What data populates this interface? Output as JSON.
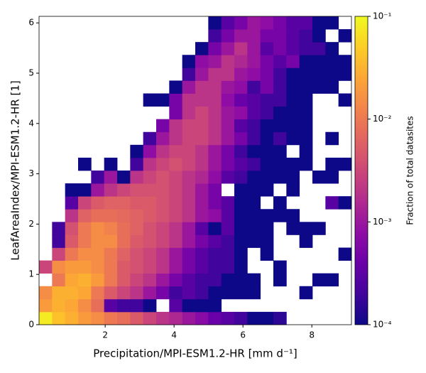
{
  "chart_data": {
    "type": "heatmap",
    "xlabel": "Precipitation/MPI-ESM1.2-HR [mm d⁻¹]",
    "ylabel": "LeafAreaIndex/MPI-ESM1.2-HR [1]",
    "colorbar_label": "Fraction of total datasites",
    "colormap": "plasma",
    "color_scale": "log",
    "xlim": [
      0.08,
      9.15
    ],
    "ylim": [
      0,
      6.13
    ],
    "xticks": [
      2,
      4,
      6,
      8
    ],
    "yticks": [
      0,
      1,
      2,
      3,
      4,
      5,
      6
    ],
    "clim": [
      0.0001,
      0.1
    ],
    "cticks": [
      {
        "value": 0.0001,
        "label": "10⁻⁴"
      },
      {
        "value": 0.001,
        "label": "10⁻³"
      },
      {
        "value": 0.01,
        "label": "10⁻²"
      },
      {
        "value": 0.1,
        "label": "10⁻¹"
      }
    ],
    "z": [
      [
        0.08,
        0.04,
        0.03,
        0.02,
        0.015,
        0.01,
        0.008,
        0.005,
        0.003,
        0.002,
        0.0015,
        0.001,
        0.0007,
        0.0004,
        0.0003,
        0.0002,
        0.0001,
        0.0001,
        0.00015,
        null,
        null,
        null,
        null,
        null
      ],
      [
        0.02,
        0.03,
        0.025,
        0.015,
        0.008,
        0.0003,
        0.0002,
        0.0002,
        0.0001,
        null,
        0.0003,
        0.0001,
        0.0001,
        0.0001,
        null,
        null,
        null,
        null,
        null,
        null,
        null,
        null,
        null,
        null
      ],
      [
        0.015,
        0.03,
        0.03,
        0.025,
        0.01,
        0.005,
        0.003,
        0.002,
        0.001,
        0.0005,
        0.0002,
        0.0003,
        0.0002,
        0.0001,
        0.0001,
        0.0001,
        0.0001,
        null,
        null,
        null,
        0.0001,
        null,
        null,
        null
      ],
      [
        null,
        0.01,
        0.025,
        0.03,
        0.02,
        0.01,
        0.005,
        0.003,
        0.002,
        0.001,
        0.0005,
        0.0003,
        0.0002,
        0.0002,
        0.0001,
        0.0001,
        0.0001,
        null,
        0.0001,
        null,
        null,
        0.0001,
        0.0001,
        null
      ],
      [
        0.003,
        0.015,
        0.02,
        0.02,
        0.015,
        0.01,
        0.005,
        0.004,
        0.003,
        0.002,
        0.001,
        0.0005,
        0.0003,
        0.0002,
        0.0002,
        0.0001,
        null,
        null,
        0.0001,
        null,
        null,
        null,
        null,
        null
      ],
      [
        null,
        0.003,
        0.01,
        0.015,
        0.015,
        0.01,
        0.006,
        0.004,
        0.003,
        0.002,
        0.001,
        0.0005,
        0.0003,
        0.0002,
        0.0002,
        0.0001,
        null,
        0.0001,
        null,
        null,
        null,
        null,
        null,
        0.0001
      ],
      [
        null,
        0.0002,
        0.005,
        0.01,
        0.015,
        0.015,
        0.008,
        0.005,
        0.004,
        0.003,
        0.002,
        0.001,
        0.0005,
        0.0003,
        0.0002,
        0.0001,
        0.0001,
        0.0001,
        null,
        null,
        0.0001,
        null,
        null,
        null
      ],
      [
        null,
        0.0002,
        0.004,
        0.01,
        0.015,
        0.012,
        0.008,
        0.006,
        0.004,
        0.003,
        0.002,
        0.001,
        0.0003,
        0.0001,
        0.0003,
        0.0001,
        0.0001,
        0.0001,
        null,
        0.0001,
        0.0001,
        0.0001,
        null,
        null
      ],
      [
        null,
        null,
        0.002,
        0.006,
        0.008,
        0.008,
        0.007,
        0.006,
        0.005,
        0.004,
        0.003,
        0.002,
        0.001,
        0.0008,
        0.0003,
        0.0001,
        0.0001,
        0.0001,
        0.0001,
        0.0001,
        null,
        null,
        null,
        null
      ],
      [
        null,
        null,
        0.0003,
        0.003,
        0.005,
        0.006,
        0.006,
        0.005,
        0.005,
        0.004,
        0.003,
        0.002,
        0.001,
        0.0005,
        0.0003,
        0.0001,
        0.0001,
        null,
        0.0001,
        null,
        null,
        null,
        0.0003,
        0.0001
      ],
      [
        null,
        null,
        0.0001,
        0.0001,
        0.001,
        0.002,
        0.003,
        0.004,
        0.004,
        0.004,
        0.003,
        0.002,
        0.001,
        0.0005,
        null,
        0.0001,
        0.0001,
        0.0001,
        null,
        0.0001,
        null,
        null,
        null,
        null
      ],
      [
        null,
        null,
        null,
        null,
        0.0002,
        0.001,
        0.0001,
        0.002,
        0.003,
        0.004,
        0.003,
        0.002,
        0.0015,
        0.0008,
        0.0003,
        0.0002,
        0.0001,
        0.0001,
        0.0001,
        0.0001,
        null,
        0.0001,
        0.0001,
        null
      ],
      [
        null,
        null,
        null,
        0.0001,
        null,
        0.0001,
        null,
        0.0002,
        0.002,
        0.003,
        0.004,
        0.003,
        0.002,
        0.001,
        0.0005,
        0.0003,
        0.0002,
        0.0001,
        0.0001,
        0.0001,
        0.0001,
        null,
        0.0001,
        0.0001
      ],
      [
        null,
        null,
        null,
        null,
        null,
        null,
        null,
        0.0001,
        0.0008,
        0.002,
        0.003,
        0.003,
        0.002,
        0.001,
        0.0005,
        0.0002,
        0.0001,
        0.0001,
        0.0001,
        null,
        0.0001,
        null,
        null,
        null
      ],
      [
        null,
        null,
        null,
        null,
        null,
        null,
        null,
        null,
        0.0002,
        0.001,
        0.002,
        0.003,
        0.003,
        0.002,
        0.001,
        0.0005,
        0.0002,
        0.0001,
        0.0002,
        0.0001,
        0.0001,
        null,
        0.0001,
        null
      ],
      [
        null,
        null,
        null,
        null,
        null,
        null,
        null,
        null,
        null,
        0.0005,
        0.002,
        0.003,
        0.003,
        0.002,
        0.001,
        0.0003,
        0.0002,
        0.0001,
        0.0001,
        0.0001,
        0.0001,
        null,
        null,
        null
      ],
      [
        null,
        null,
        null,
        null,
        null,
        null,
        null,
        null,
        null,
        null,
        0.0005,
        0.002,
        0.003,
        0.002,
        0.001,
        0.0008,
        0.0003,
        0.0002,
        0.0001,
        0.0001,
        0.0001,
        null,
        null,
        null
      ],
      [
        null,
        null,
        null,
        null,
        null,
        null,
        null,
        null,
        0.0001,
        0.0001,
        0.0005,
        0.002,
        0.002,
        0.002,
        0.0008,
        0.0004,
        0.0003,
        0.0002,
        0.0002,
        0.0001,
        0.0001,
        null,
        null,
        0.0001
      ],
      [
        null,
        null,
        null,
        null,
        null,
        null,
        null,
        null,
        null,
        null,
        0.0001,
        0.001,
        0.002,
        0.002,
        0.001,
        0.0008,
        0.0002,
        0.0005,
        0.0002,
        0.0001,
        0.0001,
        0.0001,
        0.0001,
        null
      ],
      [
        null,
        null,
        null,
        null,
        null,
        null,
        null,
        null,
        null,
        null,
        null,
        0.0002,
        0.001,
        0.002,
        0.002,
        0.001,
        0.0008,
        0.0005,
        0.0002,
        0.0001,
        0.0001,
        0.0001,
        0.0001,
        0.0001
      ],
      [
        null,
        null,
        null,
        null,
        null,
        null,
        null,
        null,
        null,
        null,
        null,
        0.0001,
        0.0008,
        0.001,
        0.002,
        0.0015,
        0.001,
        0.0005,
        0.0003,
        0.0005,
        0.0001,
        0.0001,
        0.0001,
        0.0001
      ],
      [
        null,
        null,
        null,
        null,
        null,
        null,
        null,
        null,
        null,
        null,
        null,
        null,
        0.0001,
        0.0005,
        0.001,
        0.002,
        0.001,
        0.0003,
        0.0005,
        0.0003,
        0.0002,
        0.0002,
        0.0001,
        null
      ],
      [
        null,
        null,
        null,
        null,
        null,
        null,
        null,
        null,
        null,
        null,
        null,
        null,
        null,
        0.0002,
        0.0005,
        0.001,
        0.001,
        0.0005,
        0.0005,
        0.0003,
        0.0002,
        0.0001,
        null,
        0.0001
      ],
      [
        null,
        null,
        null,
        null,
        null,
        null,
        null,
        null,
        null,
        null,
        null,
        null,
        null,
        0.0001,
        0.0003,
        0.0005,
        0.001,
        0.0008,
        0.0005,
        0.0003,
        0.0003,
        0.0001,
        0.0001,
        null
      ]
    ]
  }
}
